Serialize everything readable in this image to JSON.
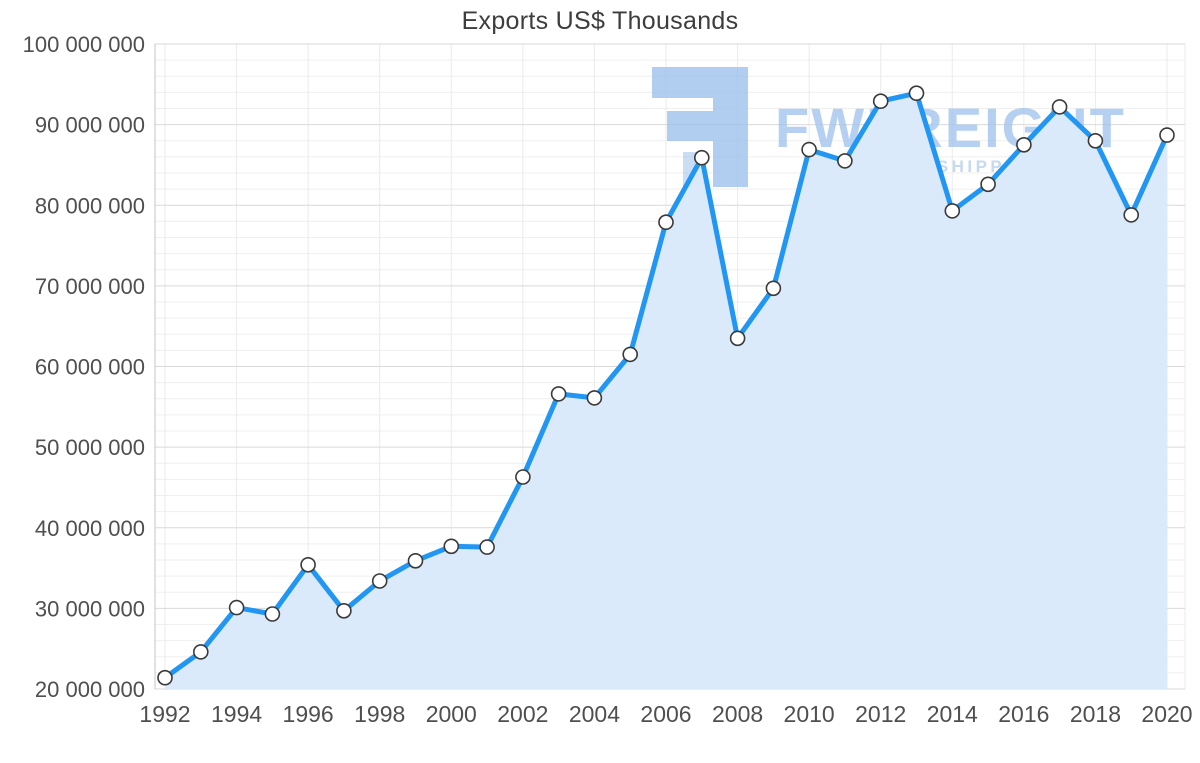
{
  "page": {
    "background": "#ffffff"
  },
  "chart_data": {
    "type": "line",
    "title": "Exports US$ Thousands",
    "series_name": "Exports",
    "xlabel": "",
    "ylabel": "",
    "area_fill": true,
    "grid": true,
    "legend": "none",
    "xlim": [
      1992,
      2020
    ],
    "ylim": [
      20000000,
      100000000
    ],
    "minor_y_step": 2000000,
    "major_y_step": 10000000,
    "x": [
      1992,
      1993,
      1994,
      1995,
      1996,
      1997,
      1998,
      1999,
      2000,
      2001,
      2002,
      2003,
      2004,
      2005,
      2006,
      2007,
      2008,
      2009,
      2010,
      2011,
      2012,
      2013,
      2014,
      2015,
      2016,
      2017,
      2018,
      2019,
      2020
    ],
    "values": [
      21400000,
      24600000,
      30100000,
      29300000,
      35400000,
      29700000,
      33400000,
      35900000,
      37700000,
      37600000,
      46300000,
      56600000,
      56100000,
      61500000,
      77900000,
      85900000,
      63500000,
      69700000,
      86900000,
      85500000,
      92900000,
      93900000,
      79300000,
      82600000,
      87500000,
      92200000,
      88000000,
      78800000,
      88700000
    ],
    "x_tick_years": [
      1992,
      1994,
      1996,
      1998,
      2000,
      2002,
      2004,
      2006,
      2008,
      2010,
      2012,
      2014,
      2016,
      2018,
      2020
    ],
    "y_ticks": [
      {
        "value": 20000000,
        "label": "20 000 000"
      },
      {
        "value": 30000000,
        "label": "30 000 000"
      },
      {
        "value": 40000000,
        "label": "40 000 000"
      },
      {
        "value": 50000000,
        "label": "50 000 000"
      },
      {
        "value": 60000000,
        "label": "60 000 000"
      },
      {
        "value": 70000000,
        "label": "70 000 000"
      },
      {
        "value": 80000000,
        "label": "80 000 000"
      },
      {
        "value": 90000000,
        "label": "90 000 000"
      },
      {
        "value": 100000000,
        "label": "100 000 000"
      }
    ],
    "colors": {
      "line": "#2196f3",
      "area": "#daeafb",
      "marker_fill": "#ffffff",
      "marker_stroke": "#3a3a3a",
      "grid_major": "#d9d9d9",
      "grid_minor": "#efefef",
      "grid_vertical": "#ebebeb",
      "axis_line": "#c4c4c4",
      "axis_text": "#4f4f4f",
      "title": "#3d3d3d"
    }
  },
  "watermark": {
    "brand": "FWFREIGHT",
    "tagline": "FREIGHT SHIPPING",
    "brand_color": "#a3c5ee",
    "tagline_color": "#b7d0ef",
    "mark_color": "#9ec2ed"
  }
}
